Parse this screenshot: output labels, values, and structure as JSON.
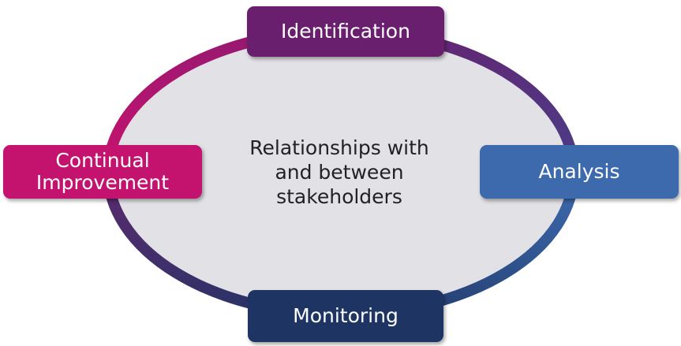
{
  "center": {
    "lines": [
      "Relationships with",
      "and between",
      "stakeholders"
    ]
  },
  "stages": {
    "identification": {
      "label": "Identification",
      "color": "#6a1f6e"
    },
    "analysis": {
      "label": "Analysis",
      "color": "#3d6aad"
    },
    "monitoring": {
      "label": "Monitoring",
      "color": "#1e3564"
    },
    "improvement": {
      "lines": [
        "Continual",
        "Improvement"
      ],
      "color": "#c3136f"
    }
  },
  "ring": {
    "fill": "#e2e1e6",
    "arc_colors": [
      "#6a1f6e",
      "#3d6aad",
      "#1e3564",
      "#c3136f"
    ]
  }
}
